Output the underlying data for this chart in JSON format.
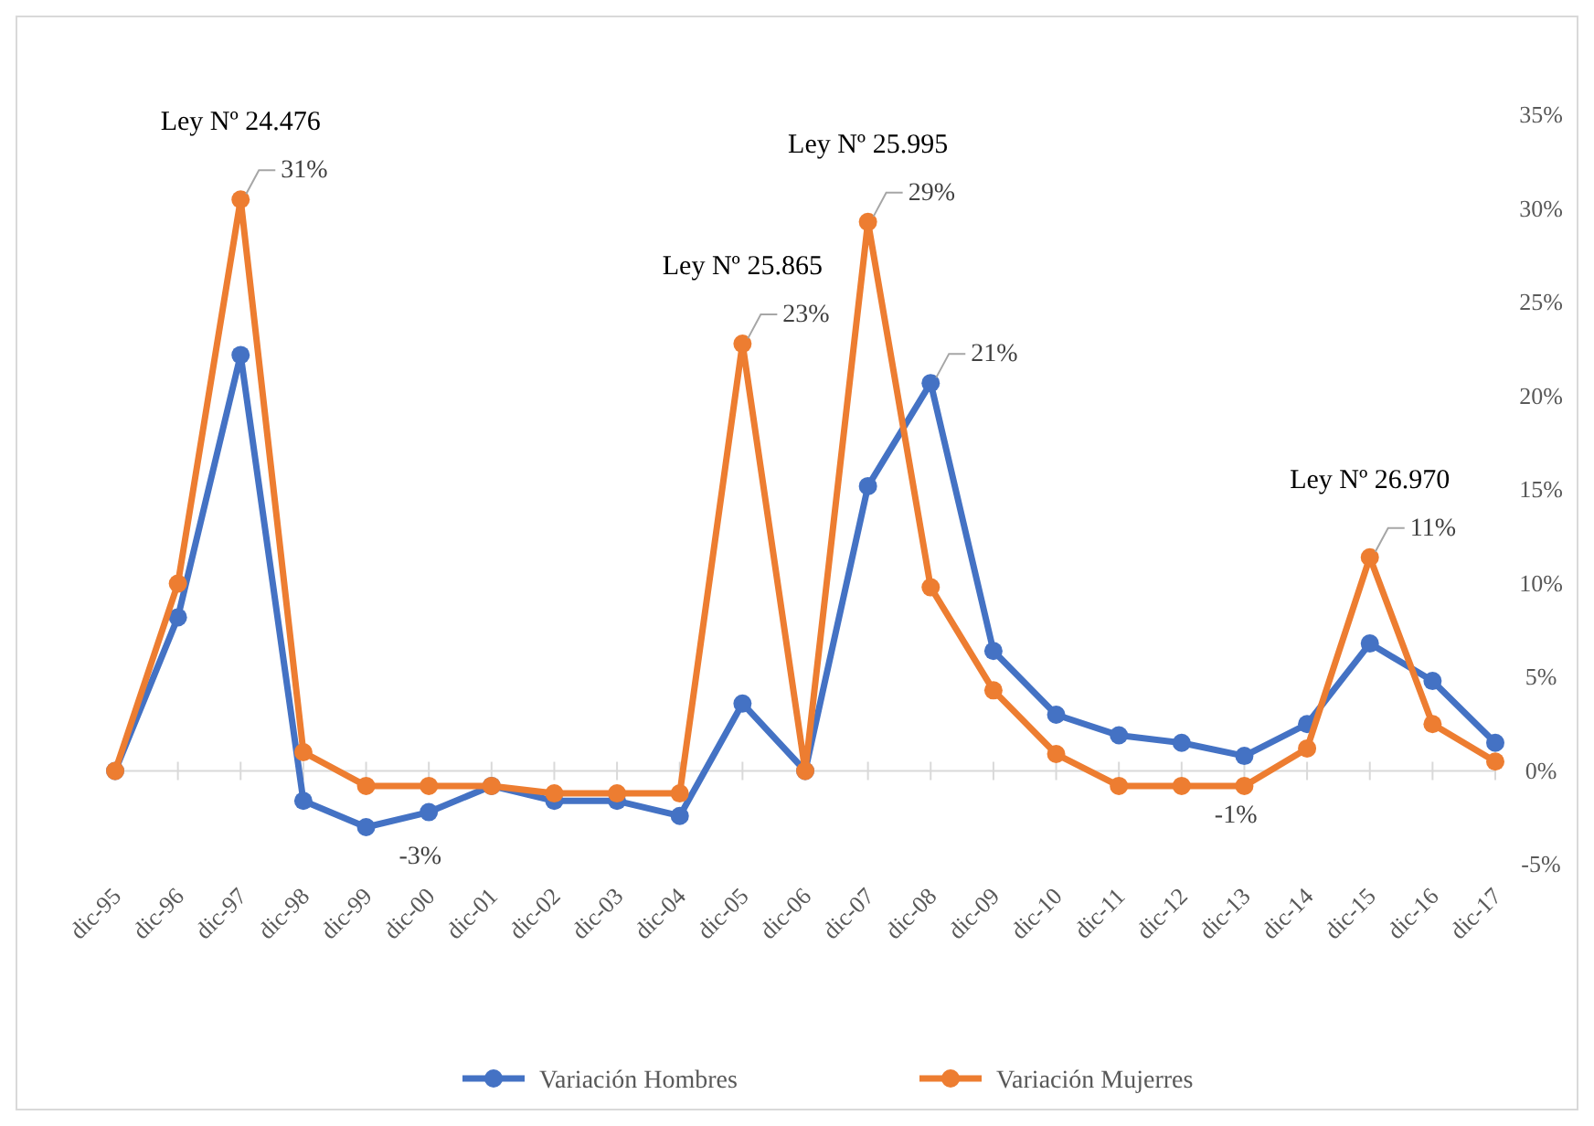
{
  "chart_data": {
    "type": "line",
    "categories": [
      "dic-95",
      "dic-96",
      "dic-97",
      "dic-98",
      "dic-99",
      "dic-00",
      "dic-01",
      "dic-02",
      "dic-03",
      "dic-04",
      "dic-05",
      "dic-06",
      "dic-07",
      "dic-08",
      "dic-09",
      "dic-10",
      "dic-11",
      "dic-12",
      "dic-13",
      "dic-14",
      "dic-15",
      "dic-16",
      "dic-17"
    ],
    "series": [
      {
        "name": "Variación Hombres",
        "color": "#4472c4",
        "values": [
          0,
          8.2,
          22.2,
          -1.6,
          -3,
          -2.2,
          -0.8,
          -1.6,
          -1.6,
          -2.4,
          3.6,
          0,
          15.2,
          20.7,
          6.4,
          3.0,
          1.9,
          1.5,
          0.8,
          2.5,
          6.8,
          4.8,
          1.5
        ],
        "value_labels": [
          null,
          null,
          null,
          null,
          "-3%",
          null,
          null,
          null,
          null,
          null,
          null,
          null,
          null,
          "21%",
          null,
          null,
          null,
          null,
          null,
          null,
          null,
          null,
          null
        ]
      },
      {
        "name": "Variación Mujerres",
        "color": "#ed7d31",
        "values": [
          0,
          10,
          30.5,
          1,
          -0.8,
          -0.8,
          -0.8,
          -1.2,
          -1.2,
          -1.2,
          22.8,
          0,
          29.3,
          9.8,
          4.3,
          0.9,
          -0.8,
          -0.8,
          -0.8,
          1.2,
          11.4,
          2.5,
          0.5
        ],
        "value_labels": [
          null,
          null,
          "31%",
          null,
          null,
          null,
          null,
          null,
          null,
          null,
          "23%",
          null,
          "29%",
          null,
          null,
          null,
          null,
          "-1%",
          null,
          null,
          "11%",
          null,
          null
        ]
      }
    ],
    "annotations": [
      {
        "text": "Ley Nº 24.476",
        "x": "dic-97",
        "y": 30.5
      },
      {
        "text": "Ley Nº 25.865",
        "x": "dic-05",
        "y": 22.8
      },
      {
        "text": "Ley Nº 25.995",
        "x": "dic-07",
        "y": 29.3
      },
      {
        "text": "Ley Nº 26.970",
        "x": "dic-15",
        "y": 11.4
      }
    ],
    "ylim": [
      -5,
      35
    ],
    "yticks": [
      {
        "value": -5,
        "label": "-5%"
      },
      {
        "value": 0,
        "label": "0%"
      },
      {
        "value": 5,
        "label": "5%"
      },
      {
        "value": 10,
        "label": "10%"
      },
      {
        "value": 15,
        "label": "15%"
      },
      {
        "value": 20,
        "label": "20%"
      },
      {
        "value": 25,
        "label": "25%"
      },
      {
        "value": 30,
        "label": "30%"
      },
      {
        "value": 35,
        "label": "35%"
      }
    ],
    "legend": "bottom",
    "marker": "circle",
    "line_style": "solid"
  }
}
